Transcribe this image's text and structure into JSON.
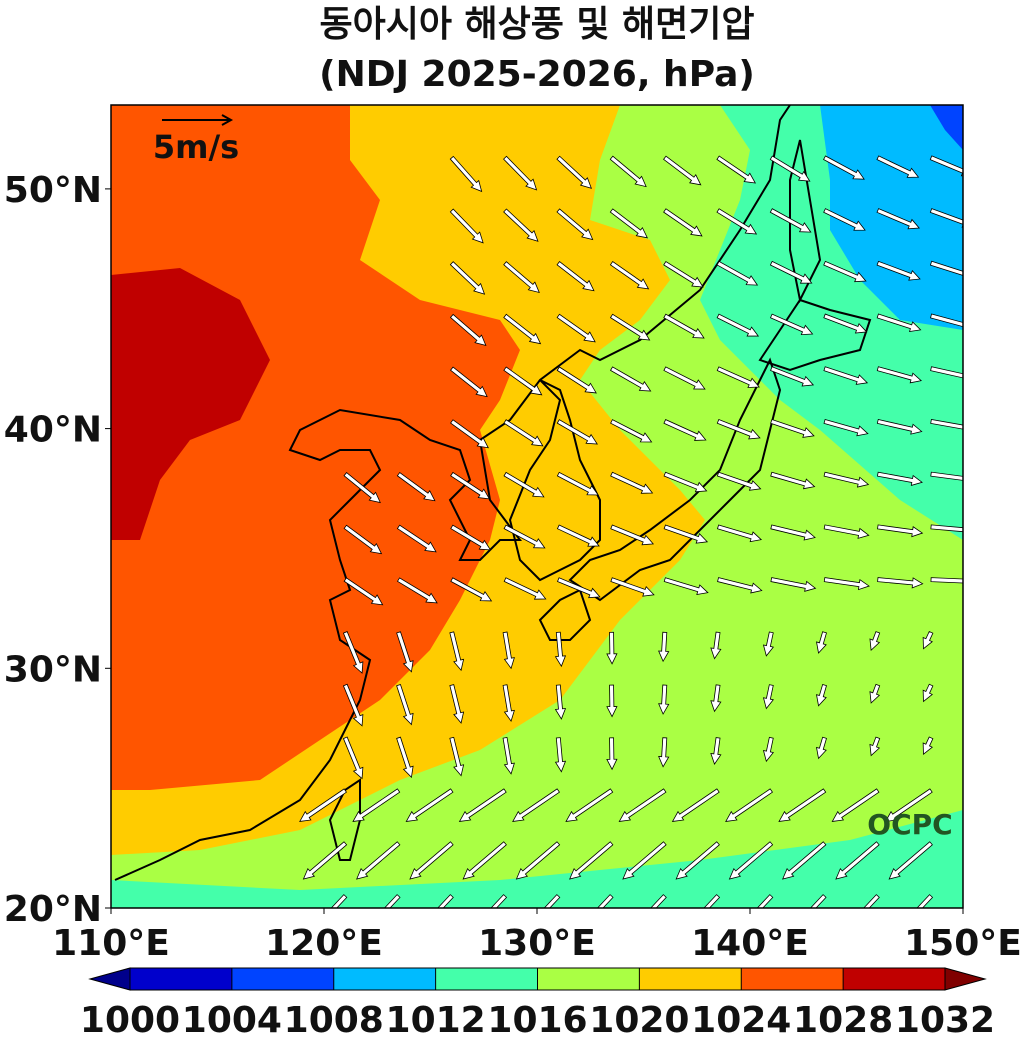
{
  "title": "동아시아 해상풍 및 해면기압",
  "subtitle": "(NDJ 2025-2026, hPa)",
  "map": {
    "lonlim": [
      110,
      150
    ],
    "latlim": [
      20,
      53.5
    ],
    "lon_ticks": [
      {
        "value": 110,
        "label": "110°E"
      },
      {
        "value": 120,
        "label": "120°E"
      },
      {
        "value": 130,
        "label": "130°E"
      },
      {
        "value": 140,
        "label": "140°E"
      },
      {
        "value": 150,
        "label": "150°E"
      }
    ],
    "lat_ticks": [
      {
        "value": 20,
        "label": "20°N"
      },
      {
        "value": 30,
        "label": "30°N"
      },
      {
        "value": 40,
        "label": "40°N"
      },
      {
        "value": 50,
        "label": "50°N"
      }
    ]
  },
  "reference_vector": "5m/s",
  "watermark": "OCPC",
  "colorbar": {
    "levels": [
      1000,
      1004,
      1008,
      1012,
      1016,
      1020,
      1024,
      1028,
      1032
    ],
    "colors": [
      "#0000cc",
      "#0044ff",
      "#00bbff",
      "#44ffaa",
      "#aaff44",
      "#ffcc00",
      "#ff5500",
      "#c00000"
    ],
    "extend_colors": [
      "#00008b",
      "#800000"
    ]
  }
}
